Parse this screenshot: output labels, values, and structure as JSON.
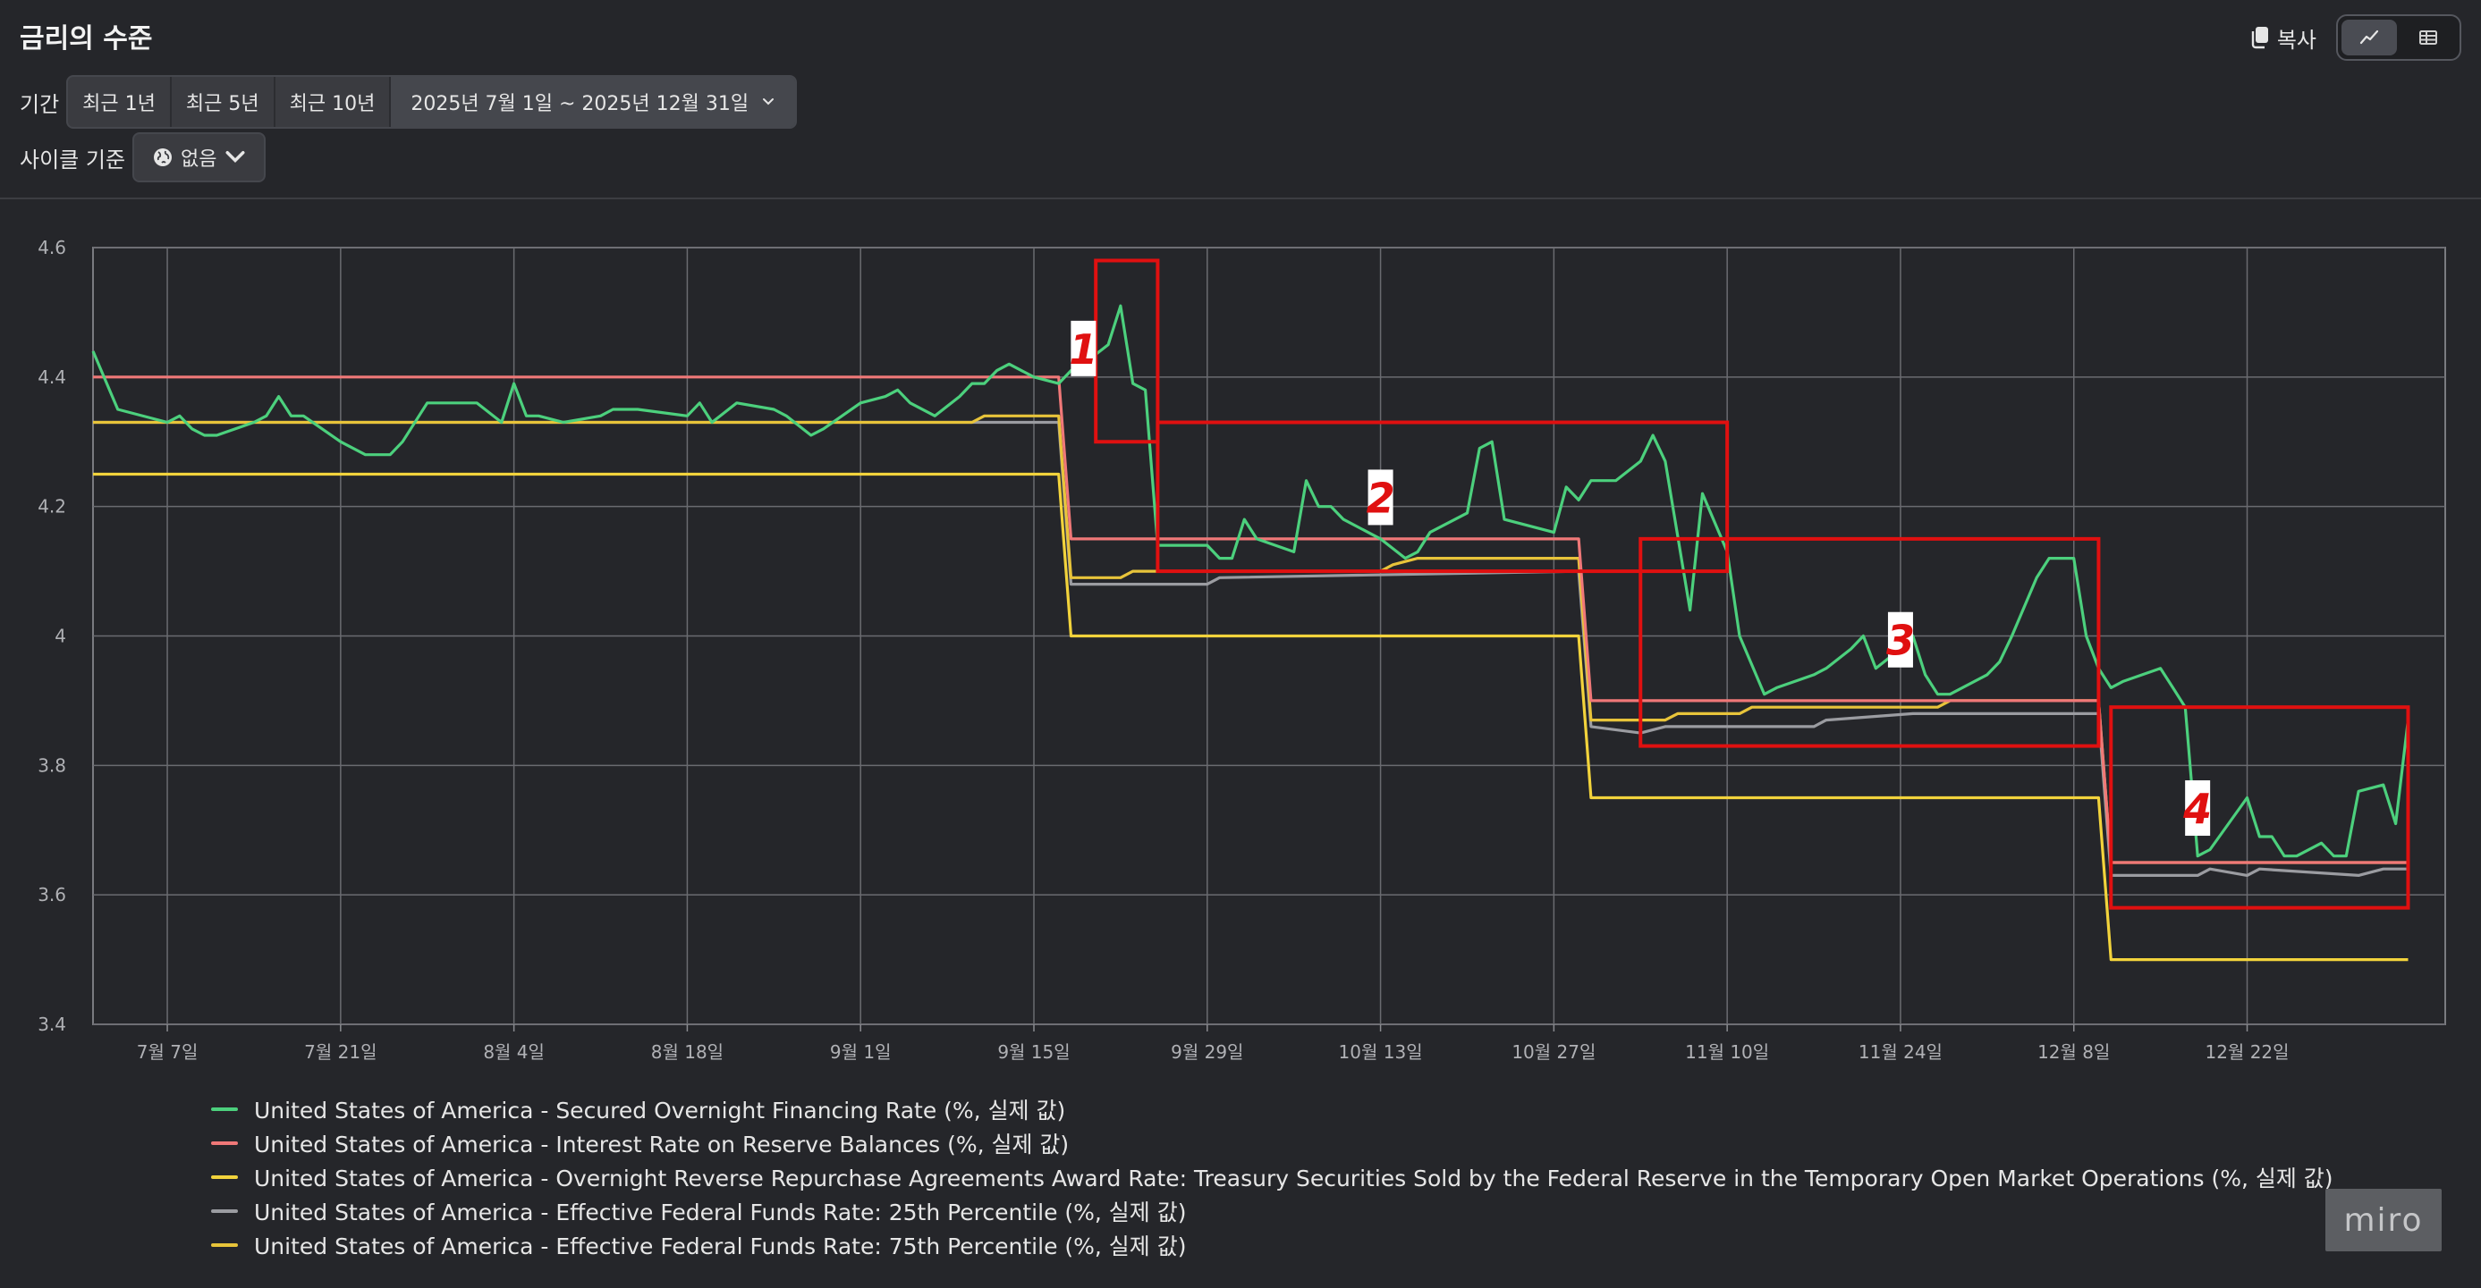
{
  "header": {
    "title": "금리의 수준",
    "copy_label": "복사"
  },
  "filters": {
    "period_label": "기간",
    "presets": [
      "최근 1년",
      "최근 5년",
      "최근 10년"
    ],
    "range_value": "2025년 7월 1일 ~ 2025년 12월 31일",
    "cycle_label": "사이클 기준",
    "cycle_value": "없음"
  },
  "watermark": "miro",
  "chart_data": {
    "type": "line",
    "ylim": [
      3.4,
      4.6
    ],
    "yticks": [
      3.4,
      3.6,
      3.8,
      4,
      4.2,
      4.4,
      4.6
    ],
    "ytick_labels": [
      "3.4",
      "3.6",
      "3.8",
      "4",
      "4.2",
      "4.4",
      "4.6"
    ],
    "xlim": [
      "2025-07-01",
      "2025-12-31"
    ],
    "xticks": [
      "2025-07-07",
      "2025-07-21",
      "2025-08-04",
      "2025-08-18",
      "2025-09-01",
      "2025-09-15",
      "2025-09-29",
      "2025-10-13",
      "2025-10-27",
      "2025-11-10",
      "2025-11-24",
      "2025-12-08",
      "2025-12-22"
    ],
    "xtick_labels": [
      "7월 7일",
      "7월 21일",
      "8월 4일",
      "8월 18일",
      "9월 1일",
      "9월 15일",
      "9월 29일",
      "10월 13일",
      "10월 27일",
      "11월 10일",
      "11월 24일",
      "12월 8일",
      "12월 22일"
    ],
    "grid": true,
    "legend_position": "bottom",
    "colors": {
      "sofr": "#4cd07d",
      "iorb": "#f07878",
      "rrp": "#f2d33c",
      "p25": "#9b9ca1",
      "p75": "#e8c43a"
    },
    "series": [
      {
        "name": "United States of America - Secured Overnight Financing Rate (%, 실제 값)",
        "color": "#4cd07d",
        "points": [
          [
            "2025-07-01",
            4.44
          ],
          [
            "2025-07-03",
            4.35
          ],
          [
            "2025-07-07",
            4.33
          ],
          [
            "2025-07-08",
            4.34
          ],
          [
            "2025-07-09",
            4.32
          ],
          [
            "2025-07-10",
            4.31
          ],
          [
            "2025-07-11",
            4.31
          ],
          [
            "2025-07-14",
            4.33
          ],
          [
            "2025-07-15",
            4.34
          ],
          [
            "2025-07-16",
            4.37
          ],
          [
            "2025-07-17",
            4.34
          ],
          [
            "2025-07-18",
            4.34
          ],
          [
            "2025-07-21",
            4.3
          ],
          [
            "2025-07-23",
            4.28
          ],
          [
            "2025-07-25",
            4.28
          ],
          [
            "2025-07-26",
            4.3
          ],
          [
            "2025-07-28",
            4.36
          ],
          [
            "2025-07-31",
            4.36
          ],
          [
            "2025-08-01",
            4.36
          ],
          [
            "2025-08-03",
            4.33
          ],
          [
            "2025-08-04",
            4.39
          ],
          [
            "2025-08-05",
            4.34
          ],
          [
            "2025-08-06",
            4.34
          ],
          [
            "2025-08-08",
            4.33
          ],
          [
            "2025-08-11",
            4.34
          ],
          [
            "2025-08-12",
            4.35
          ],
          [
            "2025-08-14",
            4.35
          ],
          [
            "2025-08-18",
            4.34
          ],
          [
            "2025-08-19",
            4.36
          ],
          [
            "2025-08-20",
            4.33
          ],
          [
            "2025-08-22",
            4.36
          ],
          [
            "2025-08-25",
            4.35
          ],
          [
            "2025-08-26",
            4.34
          ],
          [
            "2025-08-28",
            4.31
          ],
          [
            "2025-08-29",
            4.32
          ],
          [
            "2025-09-01",
            4.36
          ],
          [
            "2025-09-03",
            4.37
          ],
          [
            "2025-09-04",
            4.38
          ],
          [
            "2025-09-05",
            4.36
          ],
          [
            "2025-09-07",
            4.34
          ],
          [
            "2025-09-09",
            4.37
          ],
          [
            "2025-09-10",
            4.39
          ],
          [
            "2025-09-11",
            4.39
          ],
          [
            "2025-09-12",
            4.41
          ],
          [
            "2025-09-13",
            4.42
          ],
          [
            "2025-09-15",
            4.4
          ],
          [
            "2025-09-17",
            4.39
          ],
          [
            "2025-09-18",
            4.41
          ],
          [
            "2025-09-19",
            4.42
          ],
          [
            "2025-09-21",
            4.45
          ],
          [
            "2025-09-22",
            4.51
          ],
          [
            "2025-09-23",
            4.39
          ],
          [
            "2025-09-24",
            4.38
          ],
          [
            "2025-09-25",
            4.14
          ],
          [
            "2025-09-27",
            4.14
          ],
          [
            "2025-09-29",
            4.14
          ],
          [
            "2025-09-30",
            4.12
          ],
          [
            "2025-10-01",
            4.12
          ],
          [
            "2025-10-02",
            4.18
          ],
          [
            "2025-10-03",
            4.15
          ],
          [
            "2025-10-06",
            4.13
          ],
          [
            "2025-10-07",
            4.24
          ],
          [
            "2025-10-08",
            4.2
          ],
          [
            "2025-10-09",
            4.2
          ],
          [
            "2025-10-10",
            4.18
          ],
          [
            "2025-10-13",
            4.15
          ],
          [
            "2025-10-15",
            4.12
          ],
          [
            "2025-10-16",
            4.13
          ],
          [
            "2025-10-17",
            4.16
          ],
          [
            "2025-10-20",
            4.19
          ],
          [
            "2025-10-21",
            4.29
          ],
          [
            "2025-10-22",
            4.3
          ],
          [
            "2025-10-23",
            4.18
          ],
          [
            "2025-10-27",
            4.16
          ],
          [
            "2025-10-28",
            4.23
          ],
          [
            "2025-10-29",
            4.21
          ],
          [
            "2025-10-30",
            4.24
          ],
          [
            "2025-11-01",
            4.24
          ],
          [
            "2025-11-03",
            4.27
          ],
          [
            "2025-11-04",
            4.31
          ],
          [
            "2025-11-05",
            4.27
          ],
          [
            "2025-11-07",
            4.04
          ],
          [
            "2025-11-08",
            4.22
          ],
          [
            "2025-11-10",
            4.13
          ],
          [
            "2025-11-11",
            4.0
          ],
          [
            "2025-11-13",
            3.91
          ],
          [
            "2025-11-14",
            3.92
          ],
          [
            "2025-11-17",
            3.94
          ],
          [
            "2025-11-18",
            3.95
          ],
          [
            "2025-11-20",
            3.98
          ],
          [
            "2025-11-21",
            4.0
          ],
          [
            "2025-11-22",
            3.95
          ],
          [
            "2025-11-24",
            3.98
          ],
          [
            "2025-11-25",
            4.0
          ],
          [
            "2025-11-26",
            3.94
          ],
          [
            "2025-11-27",
            3.91
          ],
          [
            "2025-11-28",
            3.91
          ],
          [
            "2025-12-01",
            3.94
          ],
          [
            "2025-12-02",
            3.96
          ],
          [
            "2025-12-03",
            4.0
          ],
          [
            "2025-12-05",
            4.09
          ],
          [
            "2025-12-06",
            4.12
          ],
          [
            "2025-12-08",
            4.12
          ],
          [
            "2025-12-09",
            4.0
          ],
          [
            "2025-12-10",
            3.95
          ],
          [
            "2025-12-11",
            3.92
          ],
          [
            "2025-12-12",
            3.93
          ],
          [
            "2025-12-15",
            3.95
          ],
          [
            "2025-12-16",
            3.92
          ],
          [
            "2025-12-17",
            3.89
          ],
          [
            "2025-12-18",
            3.66
          ],
          [
            "2025-12-19",
            3.67
          ],
          [
            "2025-12-22",
            3.75
          ],
          [
            "2025-12-23",
            3.69
          ],
          [
            "2025-12-24",
            3.69
          ],
          [
            "2025-12-25",
            3.66
          ],
          [
            "2025-12-26",
            3.66
          ],
          [
            "2025-12-28",
            3.68
          ],
          [
            "2025-12-29",
            3.66
          ],
          [
            "2025-12-30",
            3.66
          ],
          [
            "2025-12-31",
            3.76
          ],
          [
            "2026-01-02",
            3.77
          ],
          [
            "2026-01-03",
            3.71
          ],
          [
            "2026-01-04",
            3.87
          ]
        ]
      },
      {
        "name": "United States of America - Interest Rate on Reserve Balances (%, 실제 값)",
        "color": "#f07878",
        "points": [
          [
            "2025-07-01",
            4.4
          ],
          [
            "2025-09-17",
            4.4
          ],
          [
            "2025-09-18",
            4.15
          ],
          [
            "2025-10-29",
            4.15
          ],
          [
            "2025-10-30",
            3.9
          ],
          [
            "2025-12-10",
            3.9
          ],
          [
            "2025-12-11",
            3.65
          ],
          [
            "2025-12-31",
            3.65
          ],
          [
            "2026-01-04",
            3.65
          ]
        ]
      },
      {
        "name": "United States of America - Overnight Reverse Repurchase Agreements Award Rate: Treasury Securities Sold by the Federal Reserve in the Temporary Open Market Operations (%, 실제 값)",
        "color": "#f2d33c",
        "points": [
          [
            "2025-07-01",
            4.25
          ],
          [
            "2025-09-17",
            4.25
          ],
          [
            "2025-09-18",
            4.0
          ],
          [
            "2025-10-29",
            4.0
          ],
          [
            "2025-10-30",
            3.75
          ],
          [
            "2025-12-10",
            3.75
          ],
          [
            "2025-12-11",
            3.5
          ],
          [
            "2026-01-04",
            3.5
          ]
        ]
      },
      {
        "name": "United States of America - Effective Federal Funds Rate: 25th Percentile (%, 실제 값)",
        "color": "#9b9ca1",
        "points": [
          [
            "2025-07-01",
            4.33
          ],
          [
            "2025-09-17",
            4.33
          ],
          [
            "2025-09-18",
            4.08
          ],
          [
            "2025-09-29",
            4.08
          ],
          [
            "2025-09-30",
            4.09
          ],
          [
            "2025-10-29",
            4.1
          ],
          [
            "2025-10-30",
            3.86
          ],
          [
            "2025-11-03",
            3.85
          ],
          [
            "2025-11-05",
            3.86
          ],
          [
            "2025-11-17",
            3.86
          ],
          [
            "2025-11-18",
            3.87
          ],
          [
            "2025-11-25",
            3.88
          ],
          [
            "2025-12-10",
            3.88
          ],
          [
            "2025-12-11",
            3.63
          ],
          [
            "2025-12-18",
            3.63
          ],
          [
            "2025-12-19",
            3.64
          ],
          [
            "2025-12-22",
            3.63
          ],
          [
            "2025-12-23",
            3.64
          ],
          [
            "2025-12-31",
            3.63
          ],
          [
            "2026-01-02",
            3.64
          ],
          [
            "2026-01-04",
            3.64
          ]
        ]
      },
      {
        "name": "United States of America - Effective Federal Funds Rate: 75th Percentile (%, 실제 값)",
        "color": "#e8c43a",
        "points": [
          [
            "2025-07-01",
            4.33
          ],
          [
            "2025-09-10",
            4.33
          ],
          [
            "2025-09-11",
            4.34
          ],
          [
            "2025-09-17",
            4.34
          ],
          [
            "2025-09-18",
            4.09
          ],
          [
            "2025-09-22",
            4.09
          ],
          [
            "2025-09-23",
            4.1
          ],
          [
            "2025-10-13",
            4.1
          ],
          [
            "2025-10-14",
            4.11
          ],
          [
            "2025-10-16",
            4.12
          ],
          [
            "2025-10-29",
            4.12
          ],
          [
            "2025-10-30",
            3.87
          ],
          [
            "2025-11-05",
            3.87
          ],
          [
            "2025-11-06",
            3.88
          ],
          [
            "2025-11-11",
            3.88
          ],
          [
            "2025-11-12",
            3.89
          ],
          [
            "2025-11-27",
            3.89
          ],
          [
            "2025-11-28",
            3.9
          ],
          [
            "2025-12-10",
            3.9
          ],
          [
            "2025-12-11",
            3.65
          ],
          [
            "2026-01-04",
            3.65
          ]
        ]
      }
    ],
    "annotations": [
      {
        "label": "1",
        "x_range": [
          "2025-09-20",
          "2025-09-25"
        ],
        "y_range": [
          4.3,
          4.58
        ],
        "label_at": [
          "2025-09-19",
          4.44
        ]
      },
      {
        "label": "2",
        "x_range": [
          "2025-09-25",
          "2025-11-10"
        ],
        "y_range": [
          4.1,
          4.33
        ],
        "label_at": [
          "2025-10-13",
          4.21
        ]
      },
      {
        "label": "3",
        "x_range": [
          "2025-11-03",
          "2025-12-10"
        ],
        "y_range": [
          3.83,
          4.15
        ],
        "label_at": [
          "2025-11-24",
          3.99
        ]
      },
      {
        "label": "4",
        "x_range": [
          "2025-12-11",
          "2026-01-04"
        ],
        "y_range": [
          3.58,
          3.89
        ],
        "label_at": [
          "2025-12-18",
          3.73
        ]
      }
    ]
  }
}
